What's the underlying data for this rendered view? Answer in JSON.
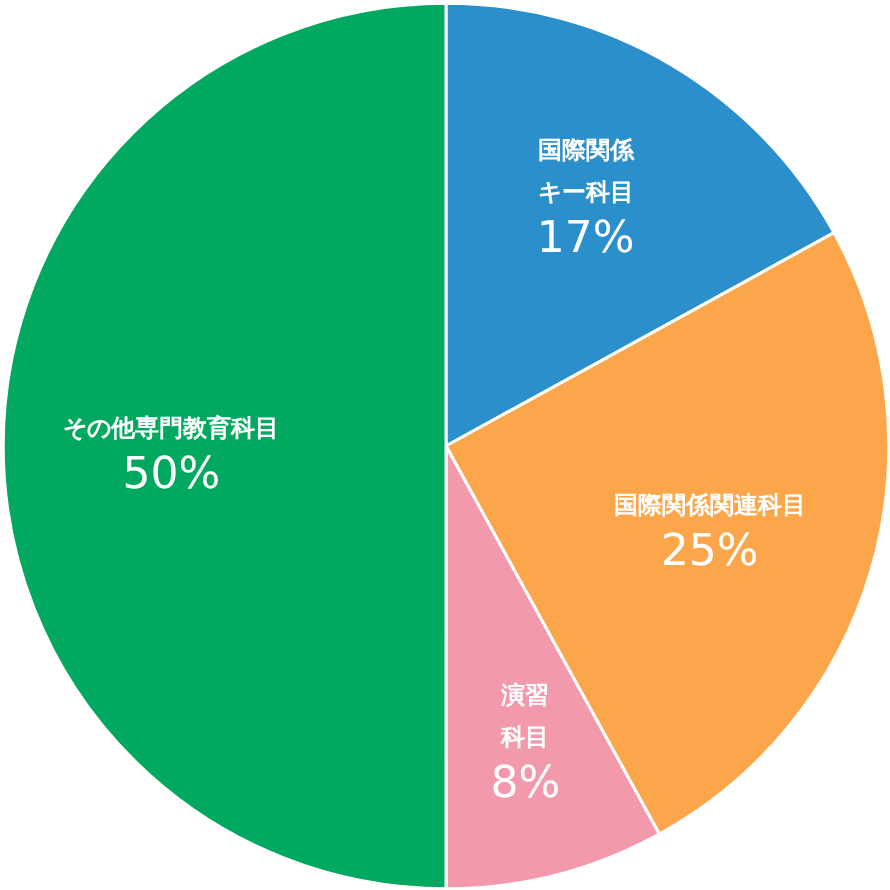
{
  "chart_data": {
    "type": "pie",
    "categories": [
      "国際関係キー科目",
      "国際関係関連科目",
      "演習科目",
      "その他専門教育科目"
    ],
    "values": [
      17,
      25,
      8,
      50
    ],
    "colors": [
      "#2a8fcb",
      "#fba64a",
      "#f29aab",
      "#00a95f"
    ],
    "value_labels": [
      "17%",
      "25%",
      "8%",
      "50%"
    ]
  }
}
